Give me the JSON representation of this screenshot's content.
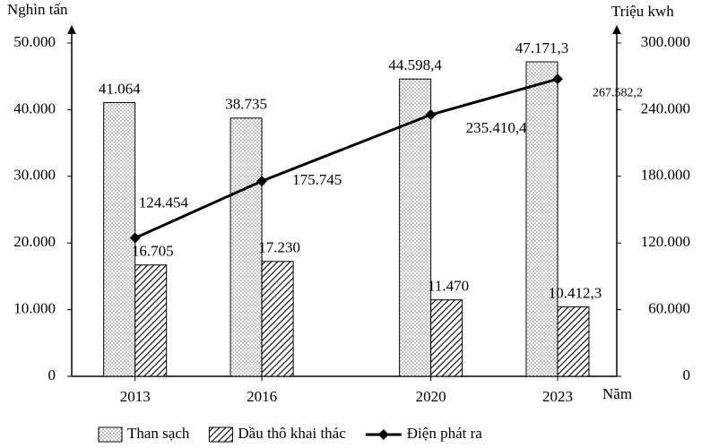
{
  "chart_data": {
    "type": "bar-line",
    "y_label": "Nghìn tấn",
    "y2_label": "Triệu kwh",
    "x_label": "Năm",
    "x": [
      2013,
      2016,
      2020,
      2023
    ],
    "x_labels": [
      "2013",
      "2016",
      "2020",
      "2023"
    ],
    "xlim": [
      2011.5,
      2024.4
    ],
    "ylim": [
      0,
      50000
    ],
    "yticks": [
      0,
      {
        "value": 10000,
        "label": "10.000"
      },
      {
        "value": 20000,
        "label": "20.000"
      },
      {
        "value": 30000,
        "label": "30.000"
      },
      {
        "value": 40000,
        "label": "40.000"
      },
      {
        "value": 50000,
        "label": "50.000"
      }
    ],
    "y2lim": [
      0,
      300000
    ],
    "y2ticks": [
      0,
      {
        "value": 60000,
        "label": "60.000"
      },
      {
        "value": 120000,
        "label": "120.000"
      },
      {
        "value": 180000,
        "label": "180.000"
      },
      {
        "value": 240000,
        "label": "240.000"
      },
      {
        "value": 300000,
        "label": "300.000"
      }
    ],
    "series": [
      {
        "name": "Than sạch",
        "kind": "bar",
        "fill": "dots",
        "values": [
          41064,
          38735,
          44598.4,
          47171.3
        ],
        "value_labels": [
          "41.064",
          "38.735",
          "44.598,4",
          "47.171,3"
        ]
      },
      {
        "name": "Dầu thô khai thác",
        "kind": "bar",
        "fill": "hatch",
        "values": [
          16705,
          17230,
          11470,
          10412.3
        ],
        "value_labels": [
          "16.705",
          "17.230",
          "11.470",
          "10.412,3"
        ]
      },
      {
        "name": "Điện phát ra",
        "kind": "line",
        "axis": "y2",
        "color": "#000000",
        "values": [
          124454,
          175745,
          235410.4,
          267582.2
        ],
        "value_labels": [
          "124.454",
          "175.745",
          "235.410,4",
          "267.582,2"
        ]
      }
    ]
  }
}
